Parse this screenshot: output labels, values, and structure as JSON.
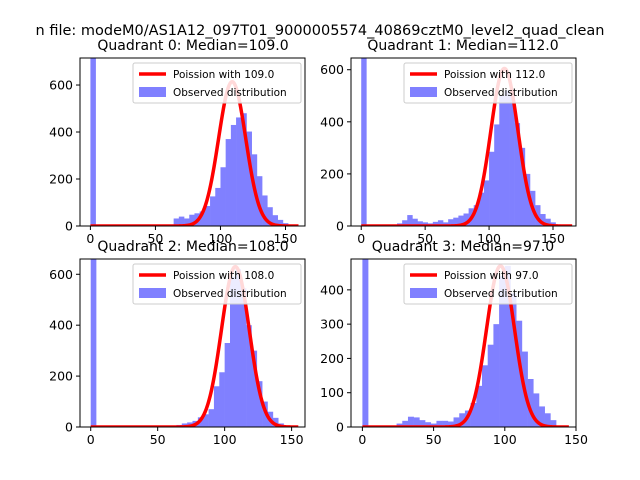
{
  "figure": {
    "suptitle": "n file: modeM0/AS1A12_097T01_9000005574_40869cztM0_level2_quad_clean"
  },
  "colors": {
    "hist": "#8080ff",
    "poisson": "#ff0000",
    "axis": "#000000",
    "background": "#ffffff",
    "legend_border": "#cccccc"
  },
  "chart_data": [
    {
      "type": "bar",
      "title": "Quadrant 0: Median=109.0",
      "xlim": [
        -8,
        165
      ],
      "ylim": [
        0,
        715
      ],
      "xticks": [
        0,
        50,
        100,
        150
      ],
      "yticks": [
        0,
        200,
        400,
        600
      ],
      "bin_width": 4,
      "bins": [
        [
          0,
          715
        ],
        [
          64,
          32
        ],
        [
          68,
          40
        ],
        [
          72,
          32
        ],
        [
          76,
          48
        ],
        [
          80,
          54
        ],
        [
          84,
          62
        ],
        [
          88,
          85
        ],
        [
          92,
          126
        ],
        [
          96,
          162
        ],
        [
          100,
          250
        ],
        [
          104,
          370
        ],
        [
          108,
          430
        ],
        [
          112,
          462
        ],
        [
          116,
          480
        ],
        [
          120,
          402
        ],
        [
          124,
          305
        ],
        [
          128,
          212
        ],
        [
          132,
          130
        ],
        [
          136,
          80
        ],
        [
          140,
          46
        ],
        [
          144,
          26
        ],
        [
          148,
          12
        ],
        [
          152,
          5
        ]
      ],
      "poisson_mean": 109.0,
      "poisson_peak": 614,
      "poisson_xrange": [
        0,
        160
      ],
      "legend": {
        "line_label": "Poission with 109.0",
        "bar_label": "Observed distribution"
      }
    },
    {
      "type": "bar",
      "title": "Quadrant 1: Median=112.0",
      "xlim": [
        -8,
        168
      ],
      "ylim": [
        0,
        645
      ],
      "xticks": [
        0,
        50,
        100,
        150
      ],
      "yticks": [
        0,
        200,
        400,
        600
      ],
      "bin_width": 4,
      "bins": [
        [
          0,
          645
        ],
        [
          28,
          10
        ],
        [
          32,
          22
        ],
        [
          36,
          42
        ],
        [
          40,
          28
        ],
        [
          44,
          18
        ],
        [
          48,
          14
        ],
        [
          52,
          10
        ],
        [
          56,
          16
        ],
        [
          60,
          22
        ],
        [
          64,
          14
        ],
        [
          68,
          26
        ],
        [
          72,
          32
        ],
        [
          76,
          40
        ],
        [
          80,
          48
        ],
        [
          84,
          68
        ],
        [
          88,
          80
        ],
        [
          92,
          128
        ],
        [
          96,
          175
        ],
        [
          100,
          285
        ],
        [
          104,
          390
        ],
        [
          108,
          500
        ],
        [
          112,
          520
        ],
        [
          116,
          505
        ],
        [
          120,
          395
        ],
        [
          124,
          300
        ],
        [
          128,
          200
        ],
        [
          132,
          135
        ],
        [
          136,
          80
        ],
        [
          140,
          46
        ],
        [
          144,
          28
        ],
        [
          148,
          14
        ],
        [
          152,
          6
        ]
      ],
      "poisson_mean": 112.0,
      "poisson_peak": 605,
      "poisson_xrange": [
        0,
        165
      ],
      "legend": {
        "line_label": "Poission with 112.0",
        "bar_label": "Observed distribution"
      }
    },
    {
      "type": "bar",
      "title": "Quadrant 2: Median=108.0",
      "xlim": [
        -8,
        160
      ],
      "ylim": [
        0,
        660
      ],
      "xticks": [
        0,
        50,
        100,
        150
      ],
      "yticks": [
        0,
        200,
        400,
        600
      ],
      "bin_width": 4,
      "bins": [
        [
          0,
          660
        ],
        [
          64,
          8
        ],
        [
          68,
          14
        ],
        [
          72,
          18
        ],
        [
          76,
          24
        ],
        [
          80,
          38
        ],
        [
          84,
          50
        ],
        [
          88,
          70
        ],
        [
          92,
          160
        ],
        [
          96,
          215
        ],
        [
          100,
          330
        ],
        [
          104,
          590
        ],
        [
          108,
          620
        ],
        [
          112,
          545
        ],
        [
          116,
          400
        ],
        [
          120,
          300
        ],
        [
          124,
          180
        ],
        [
          128,
          100
        ],
        [
          132,
          60
        ],
        [
          136,
          36
        ],
        [
          140,
          14
        ]
      ],
      "poisson_mean": 108.0,
      "poisson_peak": 630,
      "poisson_xrange": [
        0,
        155
      ],
      "legend": {
        "line_label": "Poission with 108.0",
        "bar_label": "Observed distribution"
      }
    },
    {
      "type": "bar",
      "title": "Quadrant 3: Median=97.0",
      "xlim": [
        -8,
        150
      ],
      "ylim": [
        0,
        490
      ],
      "xticks": [
        0,
        50,
        100,
        150
      ],
      "yticks": [
        0,
        100,
        200,
        300,
        400
      ],
      "bin_width": 4,
      "bins": [
        [
          0,
          490
        ],
        [
          24,
          10
        ],
        [
          28,
          18
        ],
        [
          32,
          30
        ],
        [
          36,
          28
        ],
        [
          40,
          20
        ],
        [
          44,
          14
        ],
        [
          48,
          10
        ],
        [
          52,
          18
        ],
        [
          56,
          18
        ],
        [
          60,
          16
        ],
        [
          64,
          28
        ],
        [
          68,
          40
        ],
        [
          72,
          48
        ],
        [
          76,
          70
        ],
        [
          80,
          120
        ],
        [
          84,
          180
        ],
        [
          88,
          240
        ],
        [
          92,
          300
        ],
        [
          96,
          440
        ],
        [
          100,
          470
        ],
        [
          104,
          390
        ],
        [
          108,
          310
        ],
        [
          112,
          220
        ],
        [
          116,
          140
        ],
        [
          120,
          98
        ],
        [
          124,
          60
        ],
        [
          128,
          40
        ],
        [
          132,
          20
        ]
      ],
      "poisson_mean": 97.0,
      "poisson_peak": 470,
      "poisson_xrange": [
        0,
        145
      ],
      "legend": {
        "line_label": "Poission with 97.0",
        "bar_label": "Observed distribution"
      }
    }
  ]
}
